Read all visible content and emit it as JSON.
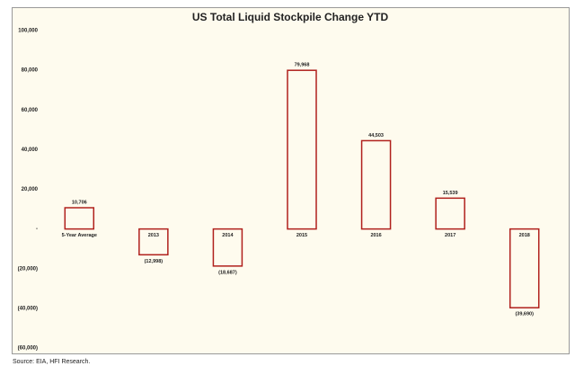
{
  "chart_data": {
    "type": "bar",
    "title": "US Total Liquid Stockpile Change YTD",
    "categories": [
      "5-Year Average",
      "2013",
      "2014",
      "2015",
      "2016",
      "2017",
      "2018"
    ],
    "values": [
      10706,
      -12998,
      -18687,
      79968,
      44503,
      15539,
      -39690
    ],
    "value_labels": [
      "10,706",
      "(12,998)",
      "(18,687)",
      "79,968",
      "44,503",
      "15,539",
      "(39,690)"
    ],
    "color": "#b0201c",
    "ylim": [
      -60000,
      100000
    ],
    "yticks": [
      {
        "value": 100000,
        "label": "100,000"
      },
      {
        "value": 80000,
        "label": "80,000"
      },
      {
        "value": 60000,
        "label": "60,000"
      },
      {
        "value": 40000,
        "label": "40,000"
      },
      {
        "value": 20000,
        "label": "20,000"
      },
      {
        "value": 0,
        "label": "-"
      },
      {
        "value": -20000,
        "label": "(20,000)"
      },
      {
        "value": -40000,
        "label": "(40,000)"
      },
      {
        "value": -60000,
        "label": "(60,000)"
      }
    ],
    "grid": false,
    "source": "Source: EIA, HFI Research."
  }
}
